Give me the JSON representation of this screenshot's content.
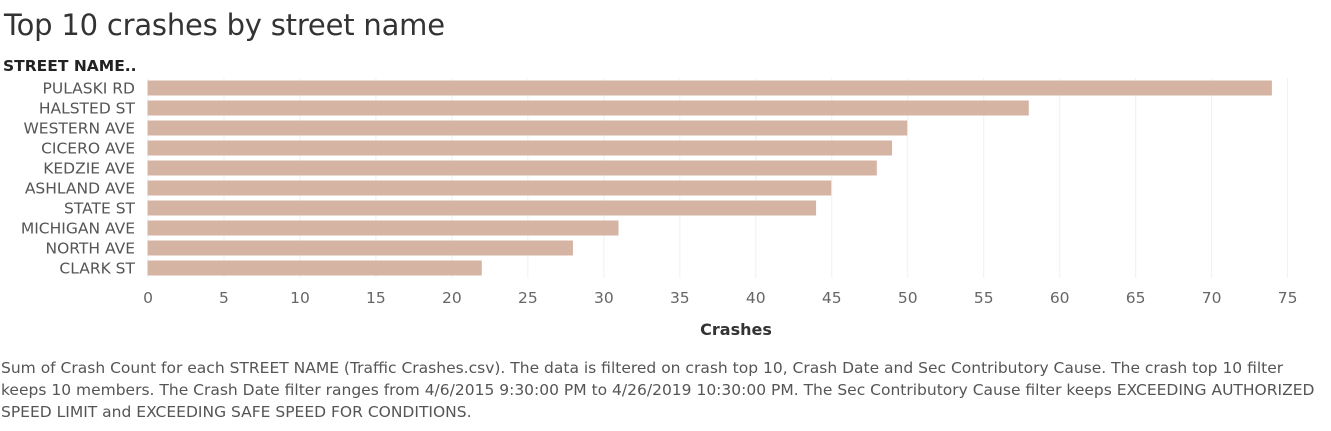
{
  "title": "Top 10 crashes by street name",
  "chart_data": {
    "type": "bar",
    "orientation": "horizontal",
    "row_header": "STREET NAME..",
    "categories": [
      "PULASKI RD",
      "HALSTED ST",
      "WESTERN AVE",
      "CICERO AVE",
      "KEDZIE AVE",
      "ASHLAND AVE",
      "STATE ST",
      "MICHIGAN AVE",
      "NORTH AVE",
      "CLARK ST"
    ],
    "values": [
      74,
      58,
      50,
      49,
      48,
      45,
      44,
      31,
      28,
      22
    ],
    "xlabel": "Crashes",
    "xlim": [
      0,
      77
    ],
    "xticks": [
      0,
      5,
      10,
      15,
      20,
      25,
      30,
      35,
      40,
      45,
      50,
      55,
      60,
      65,
      70,
      75
    ],
    "grid": true,
    "bar_color": "#d6b4a4",
    "grid_color": "#f0f0f0"
  },
  "caption": "Sum of Crash Count for each STREET NAME (Traffic Crashes.csv). The data is filtered on crash top 10, Crash Date and Sec Contributory Cause. The crash top 10 filter keeps 10 members. The Crash Date filter ranges from 4/6/2015 9:30:00 PM to 4/26/2019 10:30:00 PM. The Sec Contributory Cause filter keeps EXCEEDING AUTHORIZED SPEED LIMIT and EXCEEDING SAFE SPEED FOR CONDITIONS."
}
